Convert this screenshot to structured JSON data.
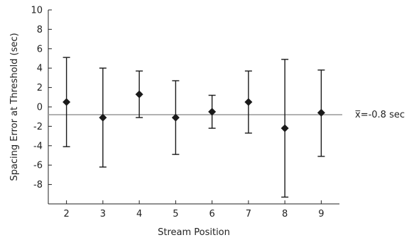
{
  "chart_data": {
    "type": "scatter",
    "title": "",
    "xlabel": "Stream Position",
    "ylabel": "Spacing Error at Threshold (sec)",
    "xlim": [
      1.5,
      9.5
    ],
    "ylim": [
      -10,
      10
    ],
    "x_ticks": [
      2,
      3,
      4,
      5,
      6,
      7,
      8,
      9
    ],
    "y_ticks": [
      10,
      8,
      6,
      4,
      2,
      0,
      -2,
      -4,
      -6,
      -8
    ],
    "grid": false,
    "series": [
      {
        "marker": "diamond",
        "color": "#1a1a1a",
        "points": [
          {
            "x": 2,
            "y": 0.5,
            "err_low": -4.1,
            "err_high": 5.1
          },
          {
            "x": 3,
            "y": -1.1,
            "err_low": -6.2,
            "err_high": 4.0
          },
          {
            "x": 4,
            "y": 1.3,
            "err_low": -1.1,
            "err_high": 3.7
          },
          {
            "x": 5,
            "y": -1.1,
            "err_low": -4.9,
            "err_high": 2.7
          },
          {
            "x": 6,
            "y": -0.5,
            "err_low": -2.2,
            "err_high": 1.2
          },
          {
            "x": 7,
            "y": 0.5,
            "err_low": -2.7,
            "err_high": 3.7
          },
          {
            "x": 8,
            "y": -2.2,
            "err_low": -9.3,
            "err_high": 4.9
          },
          {
            "x": 9,
            "y": -0.6,
            "err_low": -5.1,
            "err_high": 3.8
          }
        ]
      }
    ],
    "mean_line": {
      "value": -0.8,
      "label": "x̅=-0.8 sec",
      "color": "#999999"
    }
  }
}
